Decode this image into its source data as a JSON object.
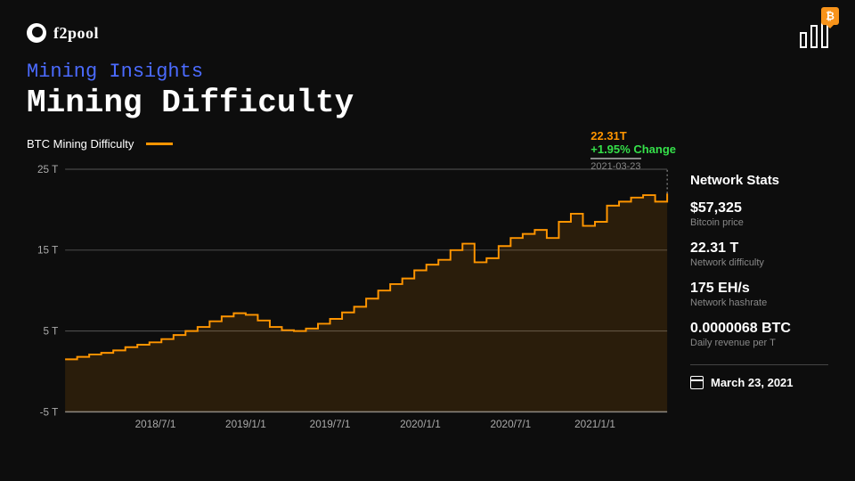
{
  "brand": {
    "name": "f2pool"
  },
  "header": {
    "subtitle": "Mining Insights",
    "title": "Mining Difficulty"
  },
  "legend": {
    "label": "BTC Mining Difficulty",
    "color": "#ff9500"
  },
  "callout": {
    "value": "22.31T",
    "change": "+1.95% Change",
    "date": "2021-03-23",
    "value_color": "#ff9500",
    "change_color": "#35e04a"
  },
  "stats": {
    "title": "Network Stats",
    "items": [
      {
        "value": "$57,325",
        "label": "Bitcoin price"
      },
      {
        "value": "22.31 T",
        "label": "Network difficulty"
      },
      {
        "value": "175 EH/s",
        "label": "Network hashrate"
      },
      {
        "value": "0.0000068 BTC",
        "label": "Daily revenue per T"
      }
    ],
    "date": "March 23, 2021"
  },
  "chart": {
    "type": "step-line",
    "series_color": "#ff9500",
    "area_fill": "rgba(255,149,0,0.12)",
    "background": "#0d0d0d",
    "grid_color": "#555555",
    "axis_color": "#888888",
    "label_color": "#aaaaaa",
    "label_fontsize": 12,
    "line_width": 2,
    "ylim": [
      -5,
      25
    ],
    "yticks": [
      -5,
      5,
      15,
      25
    ],
    "ytick_labels": [
      "-5 T",
      "5 T",
      "15 T",
      "25 T"
    ],
    "xticks": [
      15,
      30,
      44,
      59,
      74,
      88,
      100
    ],
    "xtick_labels": [
      "2018/7/1",
      "2019/1/1",
      "2019/7/1",
      "2020/1/1",
      "2020/7/1",
      "2021/1/1",
      ""
    ],
    "data": [
      [
        0,
        1.5
      ],
      [
        2,
        1.8
      ],
      [
        4,
        2.1
      ],
      [
        6,
        2.3
      ],
      [
        8,
        2.6
      ],
      [
        10,
        3.0
      ],
      [
        12,
        3.3
      ],
      [
        14,
        3.6
      ],
      [
        16,
        4.0
      ],
      [
        18,
        4.5
      ],
      [
        20,
        5.0
      ],
      [
        22,
        5.5
      ],
      [
        24,
        6.2
      ],
      [
        26,
        6.8
      ],
      [
        28,
        7.2
      ],
      [
        30,
        7.0
      ],
      [
        32,
        6.3
      ],
      [
        34,
        5.5
      ],
      [
        36,
        5.1
      ],
      [
        38,
        5.0
      ],
      [
        40,
        5.3
      ],
      [
        42,
        5.9
      ],
      [
        44,
        6.5
      ],
      [
        46,
        7.3
      ],
      [
        48,
        8.0
      ],
      [
        50,
        9.0
      ],
      [
        52,
        10.0
      ],
      [
        54,
        10.8
      ],
      [
        56,
        11.5
      ],
      [
        58,
        12.5
      ],
      [
        60,
        13.2
      ],
      [
        62,
        13.8
      ],
      [
        64,
        15.0
      ],
      [
        66,
        15.8
      ],
      [
        68,
        13.5
      ],
      [
        70,
        14.0
      ],
      [
        72,
        15.5
      ],
      [
        74,
        16.5
      ],
      [
        76,
        17.0
      ],
      [
        78,
        17.5
      ],
      [
        80,
        16.5
      ],
      [
        82,
        18.5
      ],
      [
        84,
        19.5
      ],
      [
        86,
        18.0
      ],
      [
        88,
        18.5
      ],
      [
        90,
        20.5
      ],
      [
        92,
        21.0
      ],
      [
        94,
        21.5
      ],
      [
        96,
        21.8
      ],
      [
        98,
        21.0
      ],
      [
        100,
        22.0
      ]
    ]
  }
}
